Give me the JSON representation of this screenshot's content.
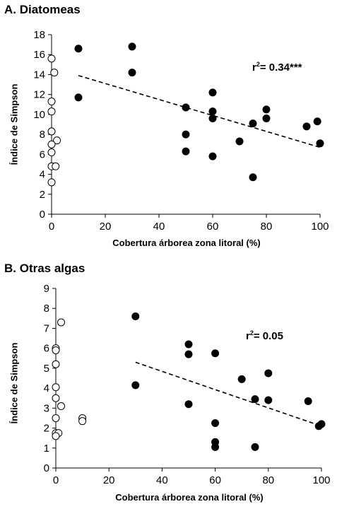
{
  "chart_data": [
    {
      "type": "scatter",
      "title": "A. Diatomeas",
      "xlabel": "Cobertura árborea zona litoral (%)",
      "ylabel": "Índice de Simpson",
      "xlim": [
        0,
        100
      ],
      "ylim": [
        0,
        18
      ],
      "xticks": [
        "0",
        "20",
        "40",
        "60",
        "80",
        "100"
      ],
      "yticks": [
        "0",
        "2",
        "4",
        "6",
        "8",
        "10",
        "12",
        "14",
        "16",
        "18"
      ],
      "annotation": {
        "r2_prefix": "r",
        "r2_sup": "2",
        "r2_value": "= 0.34***"
      },
      "series": [
        {
          "fill": "open",
          "points": [
            [
              0,
              15.6
            ],
            [
              1,
              14.2
            ],
            [
              0,
              11.3
            ],
            [
              0,
              10.3
            ],
            [
              0,
              8.3
            ],
            [
              2,
              7.4
            ],
            [
              0,
              7.0
            ],
            [
              0,
              6.2
            ],
            [
              0,
              4.8
            ],
            [
              1.5,
              4.8
            ],
            [
              0,
              3.2
            ]
          ]
        },
        {
          "fill": "filled",
          "points": [
            [
              10,
              16.6
            ],
            [
              10,
              11.7
            ],
            [
              30,
              16.8
            ],
            [
              30,
              14.2
            ],
            [
              50,
              10.7
            ],
            [
              50,
              8.0
            ],
            [
              50,
              6.3
            ],
            [
              60,
              12.2
            ],
            [
              60,
              10.3
            ],
            [
              60,
              9.6
            ],
            [
              60,
              5.8
            ],
            [
              70,
              7.3
            ],
            [
              75,
              9.1
            ],
            [
              75,
              3.7
            ],
            [
              80,
              10.5
            ],
            [
              80,
              9.6
            ],
            [
              95,
              8.8
            ],
            [
              99,
              9.3
            ],
            [
              100,
              7.1
            ]
          ]
        }
      ],
      "trendline": {
        "x": [
          10,
          100
        ],
        "y": [
          13.9,
          6.7
        ],
        "style": "dashed"
      },
      "colors": {
        "filled": "#000000",
        "open": "#ffffff"
      }
    },
    {
      "type": "scatter",
      "title": "B. Otras algas",
      "xlabel": "Cobertura árborea zona litoral (%)",
      "ylabel": "Índice de Simpson",
      "xlim": [
        0,
        100
      ],
      "ylim": [
        0,
        9
      ],
      "xticks": [
        "0",
        "20",
        "40",
        "60",
        "80",
        "100"
      ],
      "yticks": [
        "0",
        "1",
        "2",
        "3",
        "4",
        "5",
        "6",
        "7",
        "8",
        "9"
      ],
      "annotation": {
        "r2_prefix": "r",
        "r2_sup": "2",
        "r2_value": "= 0.05"
      },
      "series": [
        {
          "fill": "open",
          "points": [
            [
              2,
              7.3
            ],
            [
              0,
              6.0
            ],
            [
              0,
              5.9
            ],
            [
              0,
              5.2
            ],
            [
              0,
              4.05
            ],
            [
              0,
              3.5
            ],
            [
              2,
              3.1
            ],
            [
              0,
              2.5
            ],
            [
              0,
              1.75
            ],
            [
              1,
              1.75
            ],
            [
              0,
              1.6
            ],
            [
              10,
              2.5
            ],
            [
              10,
              2.35
            ]
          ]
        },
        {
          "fill": "filled",
          "points": [
            [
              30,
              7.6
            ],
            [
              30,
              4.15
            ],
            [
              50,
              6.2
            ],
            [
              50,
              5.7
            ],
            [
              50,
              3.2
            ],
            [
              60,
              5.75
            ],
            [
              60,
              2.25
            ],
            [
              60,
              1.3
            ],
            [
              60,
              1.05
            ],
            [
              70,
              4.45
            ],
            [
              75,
              3.45
            ],
            [
              75,
              1.05
            ],
            [
              80,
              4.75
            ],
            [
              80,
              3.4
            ],
            [
              95,
              3.35
            ],
            [
              99,
              2.1
            ],
            [
              100,
              2.2
            ]
          ]
        }
      ],
      "trendline": {
        "x": [
          30,
          100
        ],
        "y": [
          5.3,
          2.1
        ],
        "style": "dashed"
      },
      "colors": {
        "filled": "#000000",
        "open": "#ffffff"
      }
    }
  ]
}
